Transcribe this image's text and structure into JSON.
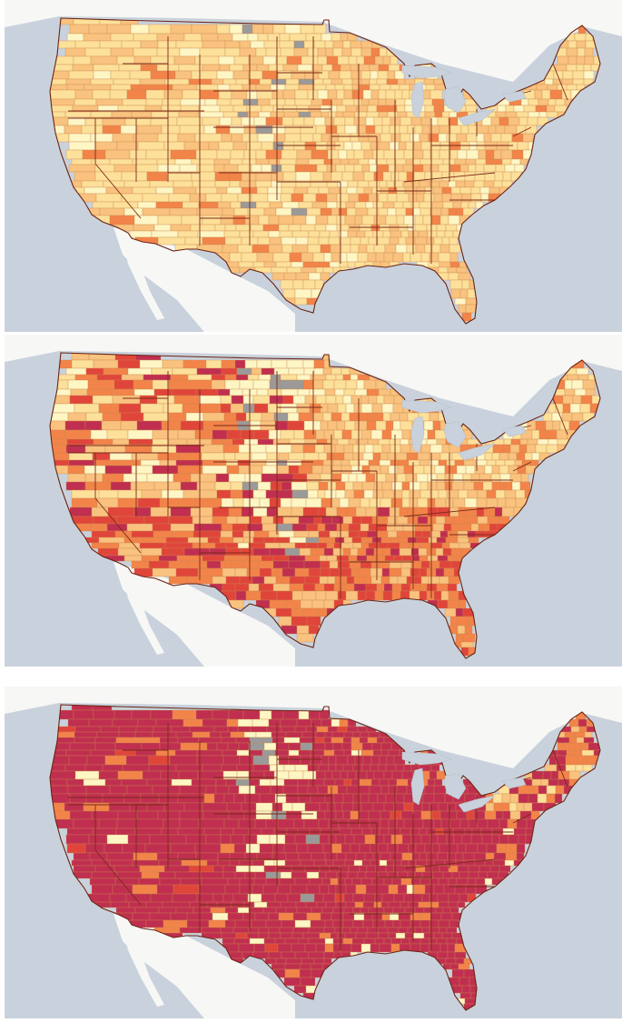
{
  "maps": [
    {
      "id": "panel-1",
      "level": "low",
      "colors": {
        "background": "#e6e6e6",
        "land": "#f7f7f5",
        "water": "#c9d2dc",
        "gray_county": "#9a9a9a"
      }
    },
    {
      "id": "panel-2",
      "level": "mid",
      "colors": {
        "background": "#e6e6e6",
        "land": "#f7f7f5",
        "water": "#c9d2dc",
        "gray_county": "#9a9a9a"
      }
    },
    {
      "id": "panel-3",
      "level": "high",
      "colors": {
        "background": "#e6e6e6",
        "land": "#f7f7f5",
        "water": "#c9d2dc",
        "gray_county": "#9a9a9a"
      }
    }
  ],
  "palette": [
    "#fef6c4",
    "#fde09a",
    "#f9c27e",
    "#f2844a",
    "#e0453a",
    "#c02f4f"
  ],
  "legend": []
}
